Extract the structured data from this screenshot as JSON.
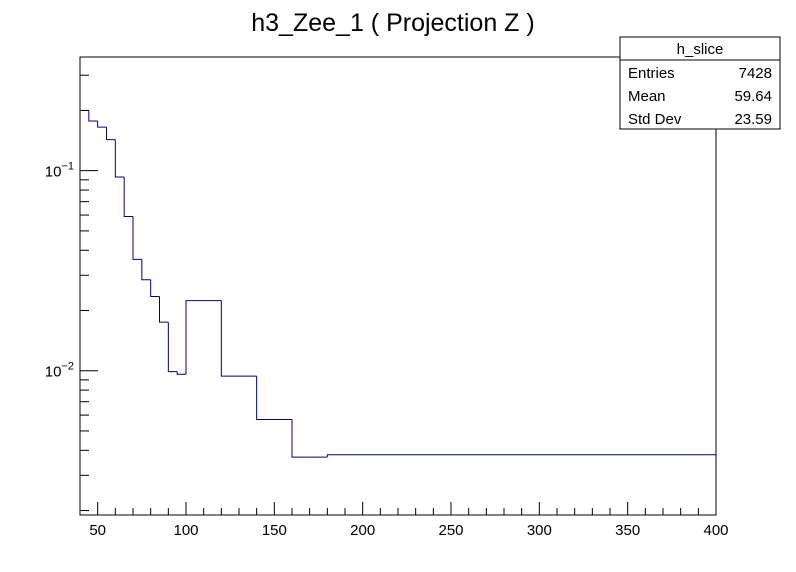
{
  "chart_data": {
    "type": "histogram",
    "title": "h3_Zee_1 ( Projection Z )",
    "xlabel": "",
    "ylabel": "",
    "xlim": [
      40,
      400
    ],
    "ylim": [
      0.0019,
      0.37
    ],
    "ylog": true,
    "grid": false,
    "line_color": "#000080",
    "bin_edges": [
      40,
      45,
      50,
      55,
      60,
      65,
      70,
      75,
      80,
      85,
      90,
      95,
      100,
      120,
      140,
      160,
      180,
      400
    ],
    "values": [
      0.2,
      0.177,
      0.165,
      0.143,
      0.093,
      0.059,
      0.036,
      0.0285,
      0.0235,
      0.0175,
      0.0099,
      0.0096,
      0.0224,
      0.0094,
      0.0057,
      0.0037,
      0.0038
    ],
    "x_ticks": [
      {
        "value": 50,
        "label": "50"
      },
      {
        "value": 100,
        "label": "100"
      },
      {
        "value": 150,
        "label": "150"
      },
      {
        "value": 200,
        "label": "200"
      },
      {
        "value": 250,
        "label": "250"
      },
      {
        "value": 300,
        "label": "300"
      },
      {
        "value": 350,
        "label": "350"
      },
      {
        "value": 400,
        "label": "400"
      }
    ],
    "y_ticks": [
      {
        "value": 0.1,
        "base": "10",
        "exp": "−1"
      },
      {
        "value": 0.01,
        "base": "10",
        "exp": "−2"
      }
    ],
    "stats_box": {
      "title": "h_slice",
      "position": "top-right",
      "rows": [
        {
          "label": "Entries",
          "value": "7428"
        },
        {
          "label": "Mean",
          "value": "59.64"
        },
        {
          "label": "Std Dev",
          "value": "23.59"
        }
      ]
    }
  }
}
